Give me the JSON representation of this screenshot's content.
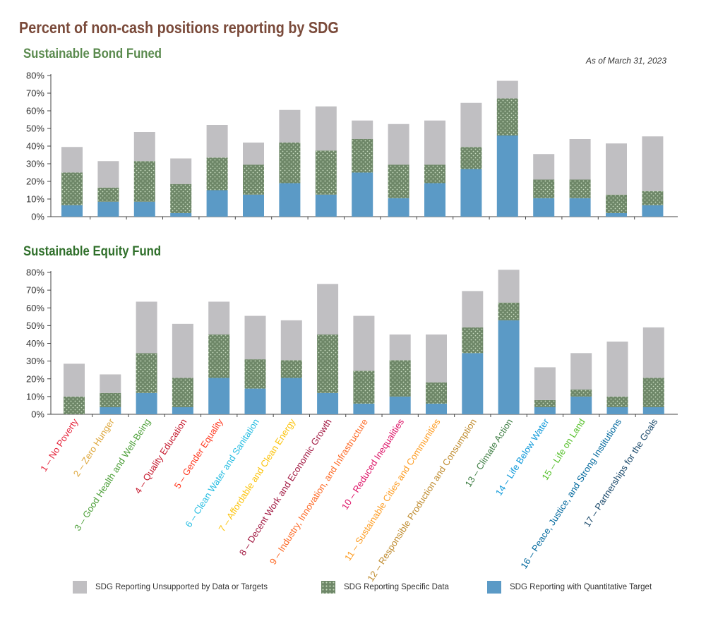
{
  "title": "Percent of non-cash positions reporting by SDG",
  "as_of": "As of March 31, 2023",
  "colors": {
    "unsupported": "#c0bfc2",
    "specific": "#6e8768",
    "specific_dot": "#c9dcc0",
    "quantitative": "#5b9ac6"
  },
  "legend": [
    {
      "key": "unsupported",
      "label": "SDG Reporting Unsupported by Data or Targets"
    },
    {
      "key": "specific",
      "label": "SDG Reporting Specific Data"
    },
    {
      "key": "quantitative",
      "label": "SDG Reporting with Quantitative Target"
    }
  ],
  "sdg_labels": [
    {
      "label": "1 – No Poverty",
      "color": "#e5243b"
    },
    {
      "label": "2 – Zero Hunger",
      "color": "#dda63a"
    },
    {
      "label": "3 – Good Health and Well-Being",
      "color": "#4c9f38"
    },
    {
      "label": "4 – Quality Education",
      "color": "#c5192d"
    },
    {
      "label": "5 – Gender Equality",
      "color": "#ff3a21"
    },
    {
      "label": "6 – Clean Water and Sanitation",
      "color": "#26bde2"
    },
    {
      "label": "7 – Affordable and Clean Energy",
      "color": "#fcc30b"
    },
    {
      "label": "8 – Decent Work and Economic Growth",
      "color": "#a21942"
    },
    {
      "label": "9 – Industry, Innovation, and Infrastructure",
      "color": "#fd6925"
    },
    {
      "label": "10 – Reduced Inequalities",
      "color": "#dd1367"
    },
    {
      "label": "11 – Sustainable Cities and Communities",
      "color": "#fd9d24"
    },
    {
      "label": "12 – Responsible Production and Consumption",
      "color": "#bf8b2e"
    },
    {
      "label": "13 – Climate Action",
      "color": "#3f7e44"
    },
    {
      "label": "14 – Life Below Water",
      "color": "#0a97d9"
    },
    {
      "label": "15 – Life on Land",
      "color": "#56c02b"
    },
    {
      "label": "16 – Peace, Justice, and Strong Institutions",
      "color": "#00689d"
    },
    {
      "label": "17 – Partnerships for the Goals",
      "color": "#19486a"
    }
  ],
  "chart_data": [
    {
      "type": "bar",
      "stacked": true,
      "title": "Sustainable Bond Funed",
      "categories": [
        "1",
        "2",
        "3",
        "4",
        "5",
        "6",
        "7",
        "8",
        "9",
        "10",
        "11",
        "12",
        "13",
        "14",
        "15",
        "16",
        "17"
      ],
      "ylim": [
        0,
        80
      ],
      "yticks": [
        "0%",
        "10%",
        "20%",
        "30%",
        "40%",
        "50%",
        "60%",
        "70%",
        "80%"
      ],
      "series": [
        {
          "name": "SDG Reporting with Quantitative Target",
          "key": "quantitative",
          "values": [
            6.5,
            8.5,
            8.5,
            2,
            15,
            12.5,
            19,
            12.5,
            25,
            10.5,
            19,
            27,
            46,
            10.5,
            10.5,
            2,
            6.5
          ]
        },
        {
          "name": "SDG Reporting Specific Data",
          "key": "specific",
          "values": [
            18.5,
            8,
            23,
            16.5,
            18.5,
            17,
            23,
            25,
            19,
            19,
            10.5,
            12.5,
            21,
            10.5,
            10.5,
            10.5,
            8
          ]
        },
        {
          "name": "SDG Reporting Unsupported by Data or Targets",
          "key": "unsupported",
          "values": [
            14.5,
            15,
            16.5,
            14.5,
            18.5,
            12.5,
            18.5,
            25,
            10.5,
            23,
            25,
            25,
            10,
            14.5,
            23,
            29,
            31
          ]
        }
      ]
    },
    {
      "type": "bar",
      "stacked": true,
      "title": "Sustainable Equity Fund",
      "categories": [
        "1",
        "2",
        "3",
        "4",
        "5",
        "6",
        "7",
        "8",
        "9",
        "10",
        "11",
        "12",
        "13",
        "14",
        "15",
        "16",
        "17"
      ],
      "ylim": [
        0,
        80
      ],
      "yticks": [
        "0%",
        "10%",
        "20%",
        "30%",
        "40%",
        "50%",
        "60%",
        "70%",
        "80%"
      ],
      "series": [
        {
          "name": "SDG Reporting with Quantitative Target",
          "key": "quantitative",
          "values": [
            0,
            4,
            12,
            4,
            20.5,
            14.5,
            20.5,
            12,
            6,
            10,
            6,
            34.5,
            53,
            4,
            10,
            4,
            4
          ]
        },
        {
          "name": "SDG Reporting Specific Data",
          "key": "specific",
          "values": [
            10,
            8,
            22.5,
            16.5,
            24.5,
            16.5,
            10,
            33,
            18.5,
            20.5,
            12,
            14.5,
            10,
            4,
            4,
            6,
            16.5
          ]
        },
        {
          "name": "SDG Reporting Unsupported by Data or Targets",
          "key": "unsupported",
          "values": [
            18.5,
            10.5,
            29,
            30.5,
            18.5,
            24.5,
            22.5,
            28.5,
            31,
            14.5,
            27,
            20.5,
            18.5,
            18.5,
            20.5,
            31,
            28.5
          ]
        }
      ]
    }
  ]
}
